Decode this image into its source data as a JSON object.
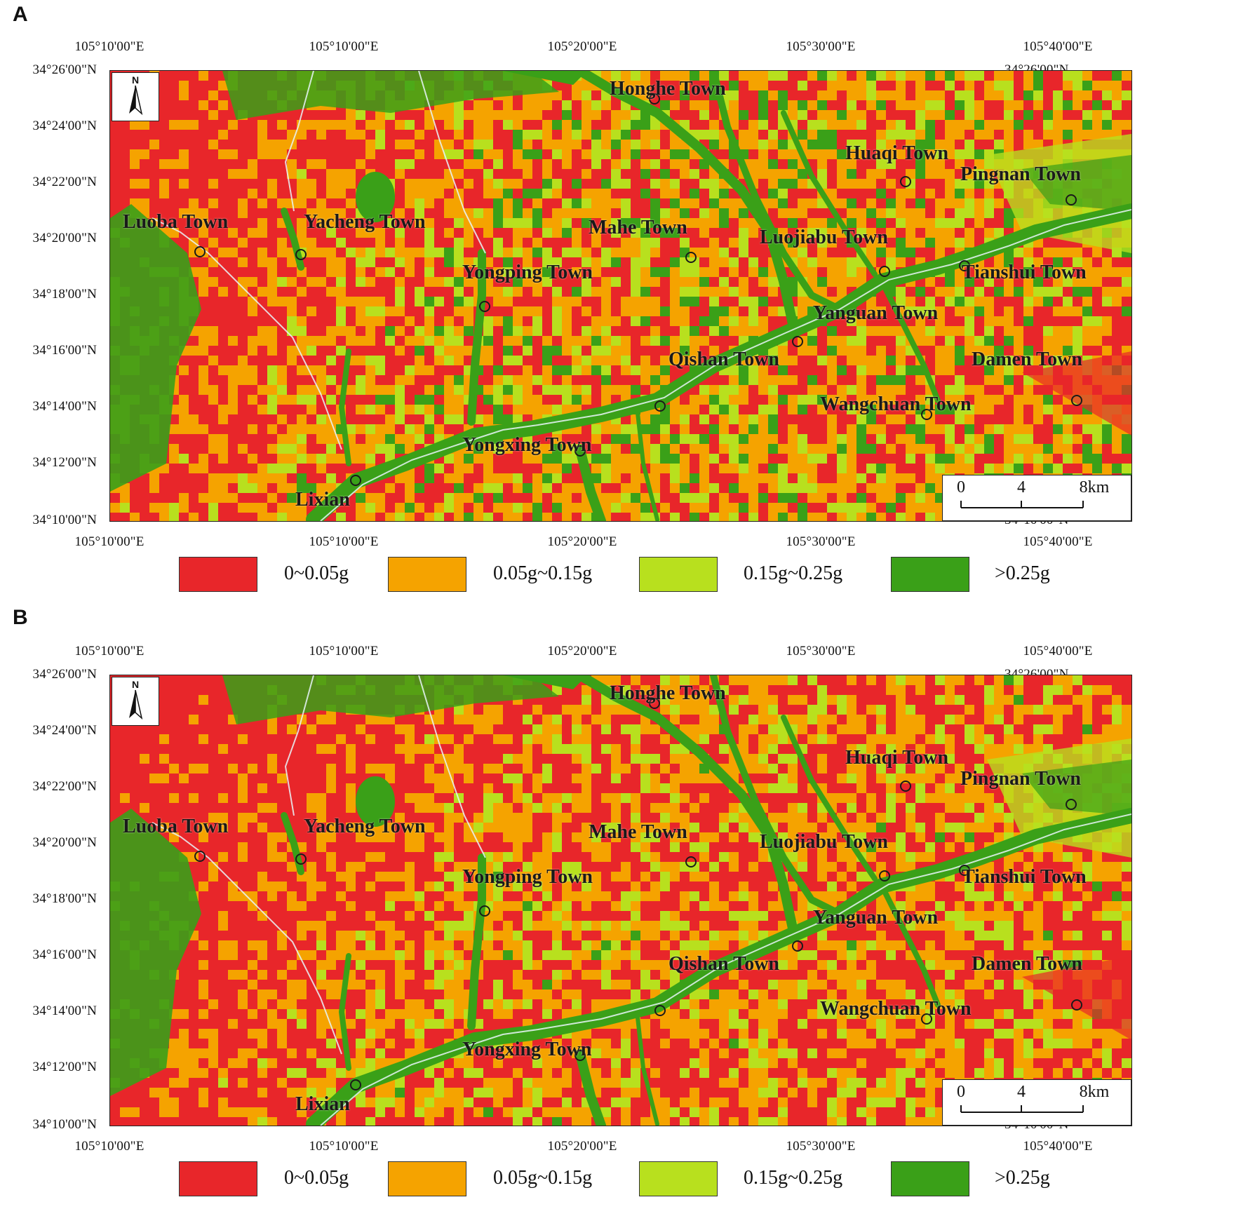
{
  "panels": [
    {
      "letter": "A",
      "lon_labels": [
        "105°10'00\"E",
        "105°10'00\"E",
        "105°20'00\"E",
        "105°30'00\"E",
        "105°40'00\"E"
      ],
      "lat_labels": [
        "34°26'00\"N",
        "34°24'00\"N",
        "34°22'00\"N",
        "34°20'00\"N",
        "34°18'00\"N",
        "34°16'00\"N",
        "34°14'00\"N",
        "34°12'00\"N",
        "34°10'00\"N"
      ],
      "north_letter": "N",
      "scale": {
        "ticks": [
          "0",
          "4",
          "8km"
        ]
      }
    },
    {
      "letter": "B",
      "lon_labels": [
        "105°10'00\"E",
        "105°10'00\"E",
        "105°20'00\"E",
        "105°30'00\"E",
        "105°40'00\"E"
      ],
      "lat_labels": [
        "34°26'00\"N",
        "34°24'00\"N",
        "34°22'00\"N",
        "34°20'00\"N",
        "34°18'00\"N",
        "34°16'00\"N",
        "34°14'00\"N",
        "34°12'00\"N",
        "34°10'00\"N"
      ],
      "north_letter": "N",
      "scale": {
        "ticks": [
          "0",
          "4",
          "8km"
        ]
      }
    }
  ],
  "towns": [
    {
      "name": "Honghe Town"
    },
    {
      "name": "Huaqi Town"
    },
    {
      "name": "Pingnan Town"
    },
    {
      "name": "Luoba Town"
    },
    {
      "name": "Yacheng Town"
    },
    {
      "name": "Mahe Town"
    },
    {
      "name": "Luojiabu Town"
    },
    {
      "name": "Yongping Town"
    },
    {
      "name": "Tianshui Town"
    },
    {
      "name": "Yanguan Town"
    },
    {
      "name": "Qishan Town"
    },
    {
      "name": "Damen Town"
    },
    {
      "name": "Wangchuan Town"
    },
    {
      "name": "Yongxing Town"
    },
    {
      "name": "Lixian"
    }
  ],
  "legend": [
    {
      "label": "0~0.05g",
      "color": "#e8262a"
    },
    {
      "label": "0.05g~0.15g",
      "color": "#f5a300"
    },
    {
      "label": "0.15g~0.25g",
      "color": "#b8e01e"
    },
    {
      "label": ">0.25g",
      "color": "#3aa018"
    }
  ],
  "legend_by_panel": [
    [
      "0~0.05g",
      "0.05g~0.15g",
      "0.15g~0.25g",
      ">0.25g"
    ],
    [
      "0~0.05g",
      "0.05g~0.15g",
      "0.15g~0.25g",
      ">0.25g"
    ]
  ]
}
